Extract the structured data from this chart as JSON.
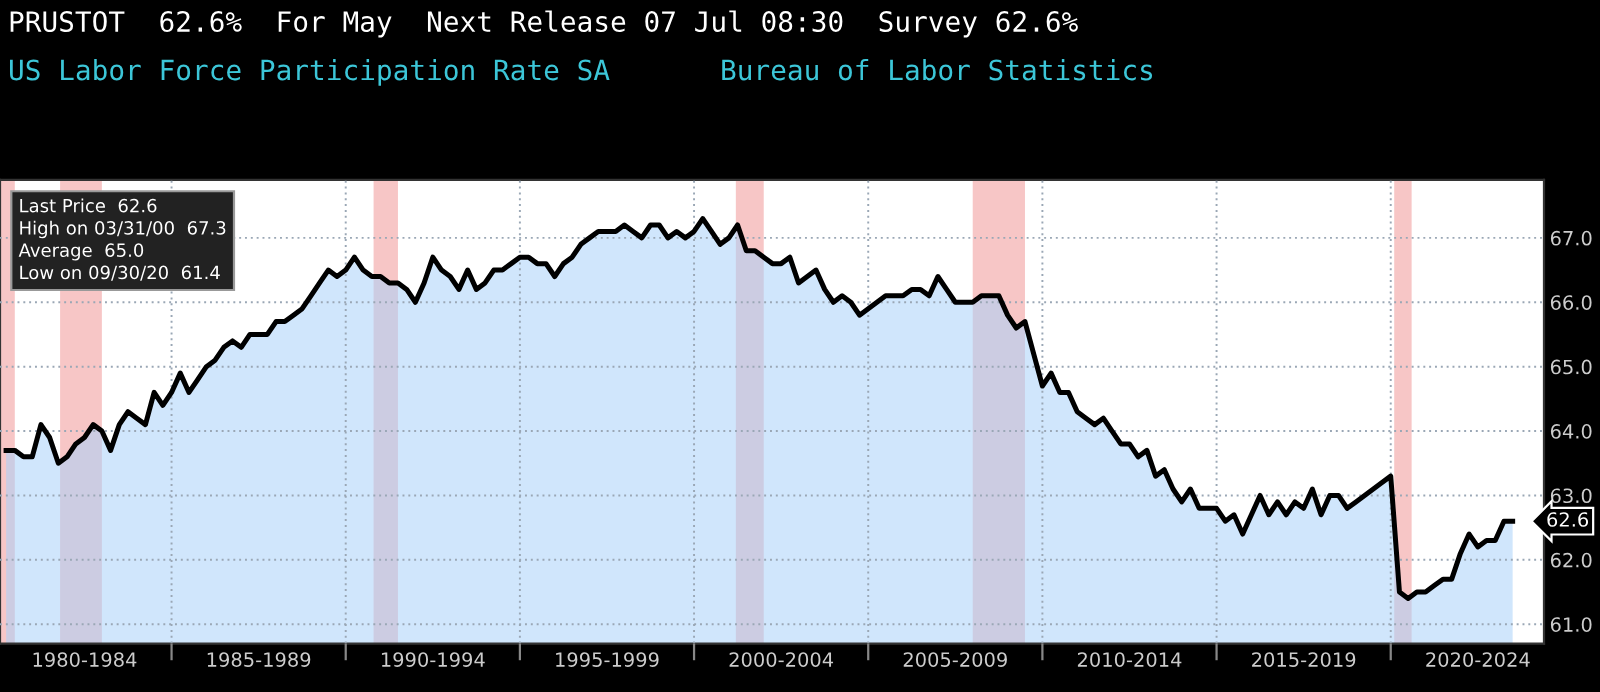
{
  "chart_data": {
    "type": "area",
    "title": "PRUSTOT  62.6%  For May  Next Release 07 Jul 08:30  Survey 62.6%",
    "subtitle": "US Labor Force Participation Rate SA",
    "annotations": [
      "Bureau of Labor Statistics",
      "Last Price  62.6",
      "High on 03/31/00  67.3",
      "Average  65.0",
      "Low on 09/30/20  61.4",
      "62.6"
    ],
    "categories": [
      null,
      null,
      null,
      null,
      null,
      null,
      null,
      null,
      null,
      "1980-1984",
      null,
      null,
      null,
      null,
      null,
      null,
      null,
      null,
      null,
      null,
      null,
      null,
      null,
      null,
      null,
      null,
      null,
      null,
      null,
      "1985-1989",
      null,
      null,
      null,
      null,
      null,
      null,
      null,
      null,
      null,
      null,
      null,
      null,
      null,
      null,
      null,
      null,
      null,
      null,
      null,
      "1990-1994",
      null,
      null,
      null,
      null,
      null,
      null,
      null,
      null,
      null,
      null,
      null,
      null,
      null,
      null,
      null,
      null,
      null,
      null,
      null,
      "1995-1999",
      null,
      null,
      null,
      null,
      null,
      null,
      null,
      null,
      null,
      null,
      null,
      null,
      null,
      null,
      null,
      null,
      null,
      null,
      null,
      "2000-2004",
      null,
      null,
      null,
      null,
      null,
      null,
      null,
      null,
      null,
      null,
      null,
      null,
      null,
      null,
      null,
      null,
      null,
      null,
      null,
      "2005-2009",
      null,
      null,
      null,
      null,
      null,
      null,
      null,
      null,
      null,
      null,
      null,
      null,
      null,
      null,
      null,
      null,
      null,
      null,
      null,
      "2010-2014",
      null,
      null,
      null,
      null,
      null,
      null,
      null,
      null,
      null,
      null,
      null,
      null,
      null,
      null,
      null,
      null,
      null,
      null,
      null,
      "2015-2019",
      null,
      null,
      null,
      null,
      null,
      null,
      null,
      null,
      null,
      null,
      null,
      null,
      null,
      null,
      null,
      null,
      null,
      null,
      null,
      "2020-2024",
      null,
      null,
      null,
      null
    ],
    "series": [
      {
        "color": "#000000",
        "values": [
          63.7,
          63.7,
          63.6,
          63.6,
          64.1,
          63.9,
          63.5,
          63.6,
          63.8,
          63.9,
          64.1,
          64.0,
          63.7,
          64.1,
          64.3,
          64.2,
          64.1,
          64.6,
          64.4,
          64.6,
          64.9,
          64.6,
          64.8,
          65.0,
          65.1,
          65.3,
          65.4,
          65.3,
          65.5,
          65.5,
          65.5,
          65.7,
          65.7,
          65.8,
          65.9,
          66.1,
          66.3,
          66.5,
          66.4,
          66.5,
          66.7,
          66.5,
          66.4,
          66.4,
          66.3,
          66.3,
          66.2,
          66.0,
          66.3,
          66.7,
          66.5,
          66.4,
          66.2,
          66.5,
          66.2,
          66.3,
          66.5,
          66.5,
          66.6,
          66.7,
          66.7,
          66.6,
          66.6,
          66.4,
          66.6,
          66.7,
          66.9,
          67.0,
          67.1,
          67.1,
          67.1,
          67.2,
          67.1,
          67.0,
          67.2,
          67.2,
          67.0,
          67.1,
          67.0,
          67.1,
          67.3,
          67.1,
          66.9,
          67.0,
          67.2,
          66.8,
          66.8,
          66.7,
          66.6,
          66.6,
          66.7,
          66.3,
          66.4,
          66.5,
          66.2,
          66.0,
          66.1,
          66.0,
          65.8,
          65.9,
          66.0,
          66.1,
          66.1,
          66.1,
          66.2,
          66.2,
          66.1,
          66.4,
          66.2,
          66.0,
          66.0,
          66.0,
          66.1,
          66.1,
          66.1,
          65.8,
          65.6,
          65.7,
          65.2,
          64.7,
          64.9,
          64.6,
          64.6,
          64.3,
          64.2,
          64.1,
          64.2,
          64.0,
          63.8,
          63.8,
          63.6,
          63.7,
          63.3,
          63.4,
          63.1,
          62.9,
          63.1,
          62.8,
          62.8,
          62.8,
          62.6,
          62.7,
          62.4,
          62.7,
          63.0,
          62.7,
          62.9,
          62.7,
          62.9,
          62.8,
          63.1,
          62.7,
          63.0,
          63.0,
          62.8,
          62.9,
          63.0,
          63.1,
          63.2,
          63.3,
          61.5,
          61.4,
          61.5,
          61.5,
          61.6,
          61.7,
          61.7,
          62.1,
          62.4,
          62.2,
          62.3,
          62.3,
          62.6,
          62.6
        ]
      }
    ],
    "ylim": [
      60.7,
      67.9
    ],
    "yticks": [
      {
        "value": 61,
        "label": "61.0"
      },
      {
        "value": 62,
        "label": "62.0"
      },
      {
        "value": 63,
        "label": "63.0"
      },
      {
        "value": 64,
        "label": "64.0"
      },
      {
        "value": 65,
        "label": "65.0"
      },
      {
        "value": 66,
        "label": "66.0"
      },
      {
        "value": 67,
        "label": "67.0"
      }
    ],
    "grid": true
  }
}
